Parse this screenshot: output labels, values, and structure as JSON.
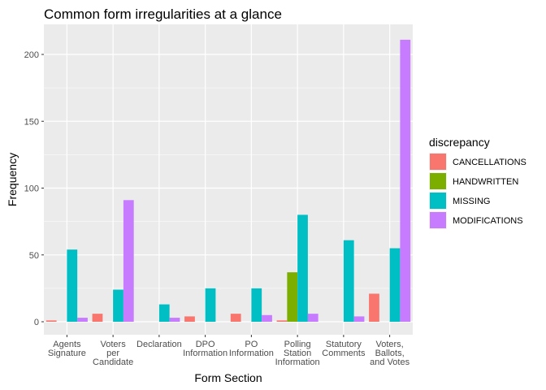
{
  "chart_data": {
    "type": "bar",
    "title": "Common form irregularities at a glance",
    "xlabel": "Form Section",
    "ylabel": "Frequency",
    "ylim": [
      0,
      215
    ],
    "y_ticks": [
      0,
      50,
      100,
      150,
      200
    ],
    "grid": true,
    "legend_position": "right",
    "legend_title": "discrepancy",
    "categories": [
      "Agents\nSignature",
      "Voters\nper\nCandidate",
      "Declaration",
      "DPO\nInformation",
      "PO\nInformation",
      "Polling\nStation\nInformation",
      "Statutory\nComments",
      "Voters,\nBallots,\nand Votes"
    ],
    "series": [
      {
        "name": "CANCELLATIONS",
        "color": "#F8766D",
        "values": [
          1,
          6,
          null,
          4,
          6,
          1,
          null,
          21
        ]
      },
      {
        "name": "HANDWRITTEN",
        "color": "#7CAE00",
        "values": [
          null,
          null,
          null,
          null,
          null,
          37,
          null,
          null
        ]
      },
      {
        "name": "MISSING",
        "color": "#00BFC4",
        "values": [
          54,
          24,
          13,
          25,
          25,
          80,
          61,
          55
        ]
      },
      {
        "name": "MODIFICATIONS",
        "color": "#C77CFF",
        "values": [
          3,
          91,
          3,
          null,
          5,
          6,
          4,
          211
        ]
      }
    ]
  }
}
